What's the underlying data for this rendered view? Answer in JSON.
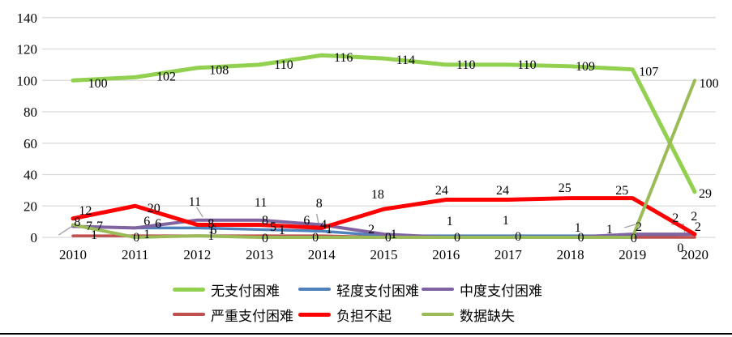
{
  "chart_data": {
    "type": "line",
    "title": "",
    "xlabel": "",
    "ylabel": "",
    "categories": [
      "2010",
      "2011",
      "2012",
      "2013",
      "2014",
      "2015",
      "2016",
      "2017",
      "2018",
      "2019",
      "2020"
    ],
    "y_ticks": [
      0,
      20,
      40,
      60,
      80,
      100,
      120,
      140
    ],
    "ylim": [
      0,
      140
    ],
    "grid": "horizontal-only",
    "legend_position": "bottom",
    "series": [
      {
        "name": "无支付困难",
        "color": "#92D050",
        "width": 5,
        "values": [
          100,
          102,
          108,
          110,
          116,
          114,
          110,
          110,
          109,
          107,
          29
        ]
      },
      {
        "name": "轻度支付困难",
        "color": "#4F81BD",
        "width": 3.5,
        "values": [
          7,
          6,
          6,
          5,
          4,
          1,
          1,
          1,
          1,
          1,
          2
        ]
      },
      {
        "name": "中度支付困难",
        "color": "#8064A2",
        "width": 4,
        "values": [
          7,
          6,
          11,
          11,
          8,
          2,
          0,
          0,
          0,
          2,
          2
        ]
      },
      {
        "name": "严重支付困难",
        "color": "#C0504D",
        "width": 3.5,
        "values": [
          1,
          1,
          1,
          1,
          1,
          0,
          0,
          0,
          0,
          0,
          0
        ]
      },
      {
        "name": "负担不起",
        "color": "#FF0000",
        "width": 5,
        "values": [
          12,
          20,
          8,
          8,
          6,
          18,
          24,
          24,
          25,
          25,
          2
        ]
      },
      {
        "name": "数据缺失",
        "color": "#9BBB59",
        "width": 4,
        "values": [
          8,
          0,
          1,
          0,
          0,
          0,
          0,
          0,
          0,
          0,
          100
        ]
      }
    ],
    "annotations": [
      {
        "t": "100",
        "x": 0.4,
        "v": 98.5
      },
      {
        "t": "102",
        "x": 1.5,
        "v": 103
      },
      {
        "t": "108",
        "x": 2.35,
        "v": 107
      },
      {
        "t": "110",
        "x": 3.39,
        "v": 110.5
      },
      {
        "t": "116",
        "x": 4.35,
        "v": 115
      },
      {
        "t": "114",
        "x": 5.35,
        "v": 113.5
      },
      {
        "t": "110",
        "x": 6.32,
        "v": 110.5
      },
      {
        "t": "110",
        "x": 7.3,
        "v": 110.5
      },
      {
        "t": "109",
        "x": 8.24,
        "v": 109.5
      },
      {
        "t": "107",
        "x": 9.26,
        "v": 106
      },
      {
        "t": "29",
        "x": 10.17,
        "v": 28.5
      },
      {
        "t": "100",
        "x": 10.23,
        "v": 98.5
      },
      {
        "t": "12",
        "x": 0.2,
        "v": 17.5
      },
      {
        "t": "20",
        "x": 1.3,
        "v": 19
      },
      {
        "t": "8",
        "x": 2.22,
        "v": 9.3
      },
      {
        "t": "8",
        "x": 3.09,
        "v": 11.4
      },
      {
        "t": "6",
        "x": 3.76,
        "v": 11.4
      },
      {
        "t": "18",
        "x": 4.9,
        "v": 28
      },
      {
        "t": "24",
        "x": 5.93,
        "v": 30.5
      },
      {
        "t": "24",
        "x": 6.91,
        "v": 30.5
      },
      {
        "t": "25",
        "x": 7.91,
        "v": 32
      },
      {
        "t": "25",
        "x": 8.83,
        "v": 30.5
      },
      {
        "t": "2",
        "x": 10.05,
        "v": 7.2
      },
      {
        "t": "8",
        "x": 0.07,
        "v": 10.3
      },
      {
        "t": "7",
        "x": 0.26,
        "v": 7.7
      },
      {
        "t": "7",
        "x": 0.43,
        "v": 7.7
      },
      {
        "t": "1",
        "x": 0.34,
        "v": 2.1
      },
      {
        "t": "6",
        "x": 1.19,
        "v": 10.8
      },
      {
        "t": "6",
        "x": 1.37,
        "v": 9.3
      },
      {
        "t": "0",
        "x": 1.02,
        "v": 0.5
      },
      {
        "t": "1",
        "x": 1.19,
        "v": 2.6
      },
      {
        "t": "11",
        "x": 1.96,
        "v": 23.2
      },
      {
        "t": "6",
        "x": 2.26,
        "v": 5.2
      },
      {
        "t": "1",
        "x": 2.22,
        "v": 1.5
      },
      {
        "t": "11",
        "x": 3.02,
        "v": 22.7
      },
      {
        "t": "5",
        "x": 3.22,
        "v": 7.2
      },
      {
        "t": "1",
        "x": 3.36,
        "v": 5.2
      },
      {
        "t": "0",
        "x": 3.09,
        "v": 0
      },
      {
        "t": "8",
        "x": 3.96,
        "v": 22.2
      },
      {
        "t": "4",
        "x": 4.03,
        "v": 8.8
      },
      {
        "t": "1",
        "x": 4.12,
        "v": 5.7
      },
      {
        "t": "0",
        "x": 3.9,
        "v": 0.5
      },
      {
        "t": "2",
        "x": 4.8,
        "v": 5.7
      },
      {
        "t": "0",
        "x": 5.07,
        "v": 0.5
      },
      {
        "t": "1",
        "x": 5.16,
        "v": 2.6
      },
      {
        "t": "1",
        "x": 6.06,
        "v": 10.8
      },
      {
        "t": "0",
        "x": 6.18,
        "v": 0.5
      },
      {
        "t": "1",
        "x": 6.96,
        "v": 11.4
      },
      {
        "t": "0",
        "x": 7.16,
        "v": 1.0
      },
      {
        "t": "1",
        "x": 8.12,
        "v": 6.7
      },
      {
        "t": "0",
        "x": 8.17,
        "v": 0.5
      },
      {
        "t": "1",
        "x": 8.63,
        "v": 5.7
      },
      {
        "t": "2",
        "x": 9.1,
        "v": 7.2
      },
      {
        "t": "0",
        "x": 9.02,
        "v": 0
      },
      {
        "t": "2",
        "x": 9.69,
        "v": 12.9
      },
      {
        "t": "2",
        "x": 9.99,
        "v": 13.9
      },
      {
        "t": "0",
        "x": 9.77,
        "v": -6.2
      }
    ],
    "leaders": [
      {
        "pts": [
          [
            -0.23,
            1.5
          ],
          [
            -0.03,
            6.7
          ]
        ]
      },
      {
        "pts": [
          [
            1.99,
            19.1
          ],
          [
            2.09,
            12.9
          ]
        ]
      },
      {
        "pts": [
          [
            3.92,
            15.0
          ],
          [
            3.95,
            8.8
          ]
        ]
      },
      {
        "pts": [
          [
            8.87,
            6.2
          ],
          [
            9.05,
            8.3
          ]
        ]
      },
      {
        "pts": [
          [
            9.62,
            8.3
          ],
          [
            9.82,
            8.3
          ],
          [
            9.84,
            3.0
          ]
        ]
      }
    ],
    "colors": {
      "gridline": "#D9D9D9",
      "leader": "#A6A6A6",
      "bottom_rule": "#000000"
    },
    "legend_rows": [
      [
        0,
        1,
        2
      ],
      [
        3,
        4,
        5
      ]
    ]
  }
}
